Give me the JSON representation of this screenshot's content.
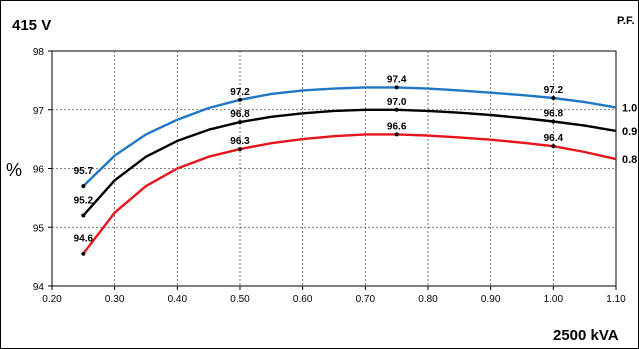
{
  "chart_data": {
    "type": "line",
    "title": "415 V",
    "subtitle": "2500 kVA",
    "legend_title": "P.F.",
    "xlabel": "",
    "ylabel": "%",
    "xlim": [
      0.2,
      1.1
    ],
    "ylim": [
      94,
      98
    ],
    "x_ticks": [
      "0.20",
      "0.30",
      "0.40",
      "0.50",
      "0.60",
      "0.70",
      "0.80",
      "0.90",
      "1.00",
      "1.10"
    ],
    "y_ticks": [
      "94",
      "95",
      "96",
      "97",
      "98"
    ],
    "grid": true,
    "series": [
      {
        "name": "1.0",
        "color": "#1f77c4",
        "x": [
          0.25,
          0.3,
          0.35,
          0.4,
          0.45,
          0.5,
          0.55,
          0.6,
          0.65,
          0.7,
          0.75,
          0.8,
          0.85,
          0.9,
          0.95,
          1.0,
          1.05,
          1.1
        ],
        "y": [
          95.7,
          96.22,
          96.58,
          96.83,
          97.03,
          97.17,
          97.27,
          97.33,
          97.36,
          97.38,
          97.38,
          97.36,
          97.33,
          97.29,
          97.25,
          97.2,
          97.13,
          97.04
        ],
        "points": [
          {
            "x": 0.25,
            "y": 95.7,
            "label": "95.7"
          },
          {
            "x": 0.5,
            "y": 97.2,
            "label": "97.2"
          },
          {
            "x": 0.75,
            "y": 97.4,
            "label": "97.4"
          },
          {
            "x": 1.0,
            "y": 97.2,
            "label": "97.2"
          }
        ]
      },
      {
        "name": "0.9",
        "color": "#000000",
        "x": [
          0.25,
          0.3,
          0.35,
          0.4,
          0.45,
          0.5,
          0.55,
          0.6,
          0.65,
          0.7,
          0.75,
          0.8,
          0.85,
          0.9,
          0.95,
          1.0,
          1.05,
          1.1
        ],
        "y": [
          95.2,
          95.8,
          96.2,
          96.47,
          96.66,
          96.79,
          96.88,
          96.94,
          96.98,
          97.0,
          97.0,
          96.98,
          96.95,
          96.91,
          96.86,
          96.8,
          96.73,
          96.64
        ],
        "points": [
          {
            "x": 0.25,
            "y": 95.2,
            "label": "95.2"
          },
          {
            "x": 0.5,
            "y": 96.8,
            "label": "96.8"
          },
          {
            "x": 0.75,
            "y": 97.0,
            "label": "97.0"
          },
          {
            "x": 1.0,
            "y": 96.8,
            "label": "96.8"
          }
        ]
      },
      {
        "name": "0.8",
        "color": "#e8141b",
        "x": [
          0.25,
          0.3,
          0.35,
          0.4,
          0.45,
          0.5,
          0.55,
          0.6,
          0.65,
          0.7,
          0.75,
          0.8,
          0.85,
          0.9,
          0.95,
          1.0,
          1.05,
          1.1
        ],
        "y": [
          94.55,
          95.25,
          95.7,
          96.0,
          96.2,
          96.33,
          96.43,
          96.5,
          96.55,
          96.58,
          96.58,
          96.56,
          96.53,
          96.49,
          96.44,
          96.38,
          96.28,
          96.16
        ],
        "points": [
          {
            "x": 0.25,
            "y": 94.6,
            "label": "94.6"
          },
          {
            "x": 0.5,
            "y": 96.3,
            "label": "96.3"
          },
          {
            "x": 0.75,
            "y": 96.6,
            "label": "96.6"
          },
          {
            "x": 1.0,
            "y": 96.4,
            "label": "96.4"
          }
        ]
      }
    ]
  }
}
